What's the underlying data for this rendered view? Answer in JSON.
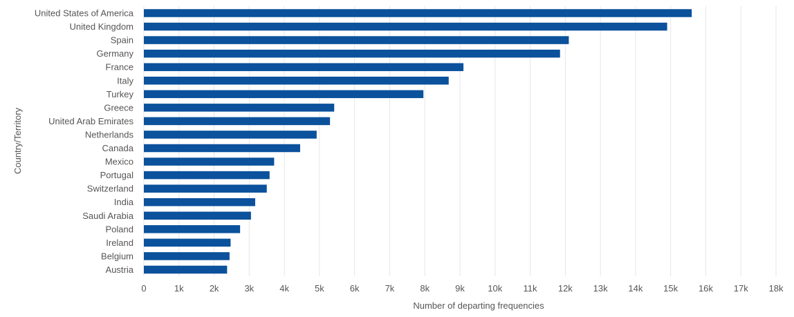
{
  "chart_data": {
    "type": "bar",
    "orientation": "horizontal",
    "categories": [
      "United States of America",
      "United Kingdom",
      "Spain",
      "Germany",
      "France",
      "Italy",
      "Turkey",
      "Greece",
      "United Arab Emirates",
      "Netherlands",
      "Canada",
      "Mexico",
      "Portugal",
      "Switzerland",
      "India",
      "Saudi Arabia",
      "Poland",
      "Ireland",
      "Belgium",
      "Austria"
    ],
    "values": [
      15600,
      14900,
      12100,
      11850,
      9100,
      8680,
      7960,
      5420,
      5300,
      4920,
      4450,
      3710,
      3580,
      3500,
      3170,
      3050,
      2740,
      2470,
      2440,
      2370
    ],
    "xlabel": "Number of departing frequencies",
    "ylabel": "Country/Territory",
    "xlim": [
      0,
      18000
    ],
    "xticks": [
      0,
      1000,
      2000,
      3000,
      4000,
      5000,
      6000,
      7000,
      8000,
      9000,
      10000,
      11000,
      12000,
      13000,
      14000,
      15000,
      16000,
      17000,
      18000
    ],
    "xtick_labels": [
      "0",
      "1k",
      "2k",
      "3k",
      "4k",
      "5k",
      "6k",
      "7k",
      "8k",
      "9k",
      "10k",
      "11k",
      "12k",
      "13k",
      "14k",
      "15k",
      "16k",
      "17k",
      "18k"
    ],
    "grid": true,
    "bar_color": "#0b519c"
  }
}
